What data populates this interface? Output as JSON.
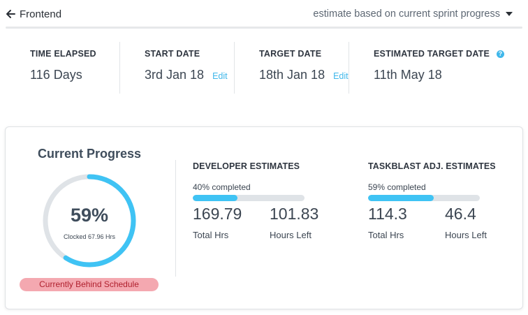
{
  "header": {
    "back_label": "Frontend",
    "mode_label": "estimate based on current sprint progress"
  },
  "stats": [
    {
      "label": "TIME ELAPSED",
      "value": "116 Days"
    },
    {
      "label": "START DATE",
      "value": "3rd Jan 18",
      "edit": "Edit"
    },
    {
      "label": "TARGET DATE",
      "value": "18th Jan 18",
      "edit": "Edit"
    },
    {
      "label": "ESTIMATED TARGET DATE",
      "value": "11th May 18",
      "help": "?"
    }
  ],
  "progress": {
    "title": "Current Progress",
    "percent_label": "59%",
    "percent": 0.59,
    "clocked": "Clocked 67.96 Hrs",
    "status": "Currently Behind Schedule"
  },
  "developer": {
    "title": "DEVELOPER ESTIMATES",
    "completed_label": "40% completed",
    "completed": 0.4,
    "total_hrs": "169.79",
    "total_label": "Total Hrs",
    "hours_left": "101.83",
    "left_label": "Hours Left"
  },
  "taskblast": {
    "title": "TASKBLAST ADJ. ESTIMATES",
    "completed_label": "59% completed",
    "completed": 0.59,
    "total_hrs": "114.3",
    "total_label": "Total Hrs",
    "hours_left": "46.4",
    "left_label": "Hours Left"
  },
  "colors": {
    "accent": "#3fc3f4",
    "track": "#dfe3e7",
    "behind_bg": "#f4a8b0",
    "behind_text": "#b0202e"
  }
}
